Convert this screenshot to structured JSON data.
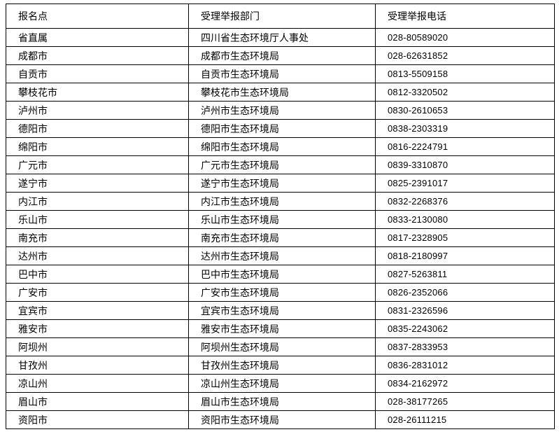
{
  "colors": {
    "background": "#ffffff",
    "border": "#000000",
    "text": "#000000"
  },
  "table": {
    "headers": [
      "报名点",
      "受理举报部门",
      "受理举报电话"
    ],
    "rows": [
      [
        "省直属",
        "四川省生态环境厅人事处",
        "028-80589020"
      ],
      [
        "成都市",
        "成都市生态环境局",
        "028-62631852"
      ],
      [
        "自贡市",
        "自贡市生态环境局",
        "0813-5509158"
      ],
      [
        "攀枝花市",
        "攀枝花市生态环境局",
        "0812-3320502"
      ],
      [
        "泸州市",
        "泸州市生态环境局",
        "0830-2610653"
      ],
      [
        "德阳市",
        "德阳市生态环境局",
        "0838-2303319"
      ],
      [
        "绵阳市",
        "绵阳市生态环境局",
        "0816-2224791"
      ],
      [
        "广元市",
        "广元市生态环境局",
        "0839-3310870"
      ],
      [
        "遂宁市",
        "遂宁市生态环境局",
        "0825-2391017"
      ],
      [
        "内江市",
        "内江市生态环境局",
        "0832-2268376"
      ],
      [
        "乐山市",
        "乐山市生态环境局",
        "0833-2130080"
      ],
      [
        "南充市",
        "南充市生态环境局",
        "0817-2328905"
      ],
      [
        "达州市",
        "达州市生态环境局",
        "0818-2180997"
      ],
      [
        "巴中市",
        "巴中市生态环境局",
        "0827-5263811"
      ],
      [
        "广安市",
        "广安市生态环境局",
        "0826-2352066"
      ],
      [
        "宜宾市",
        "宜宾市生态环境局",
        "0831-2326596"
      ],
      [
        "雅安市",
        "雅安市生态环境局",
        "0835-2243062"
      ],
      [
        "阿坝州",
        "阿坝州生态环境局",
        "0837-2833953"
      ],
      [
        "甘孜州",
        "甘孜州生态环境局",
        "0836-2831012"
      ],
      [
        "凉山州",
        "凉山州生态环境局",
        "0834-2162972"
      ],
      [
        "眉山市",
        "眉山市生态环境局",
        "028-38177265"
      ],
      [
        "资阳市",
        "资阳市生态环境局",
        "028-26111215"
      ]
    ]
  }
}
